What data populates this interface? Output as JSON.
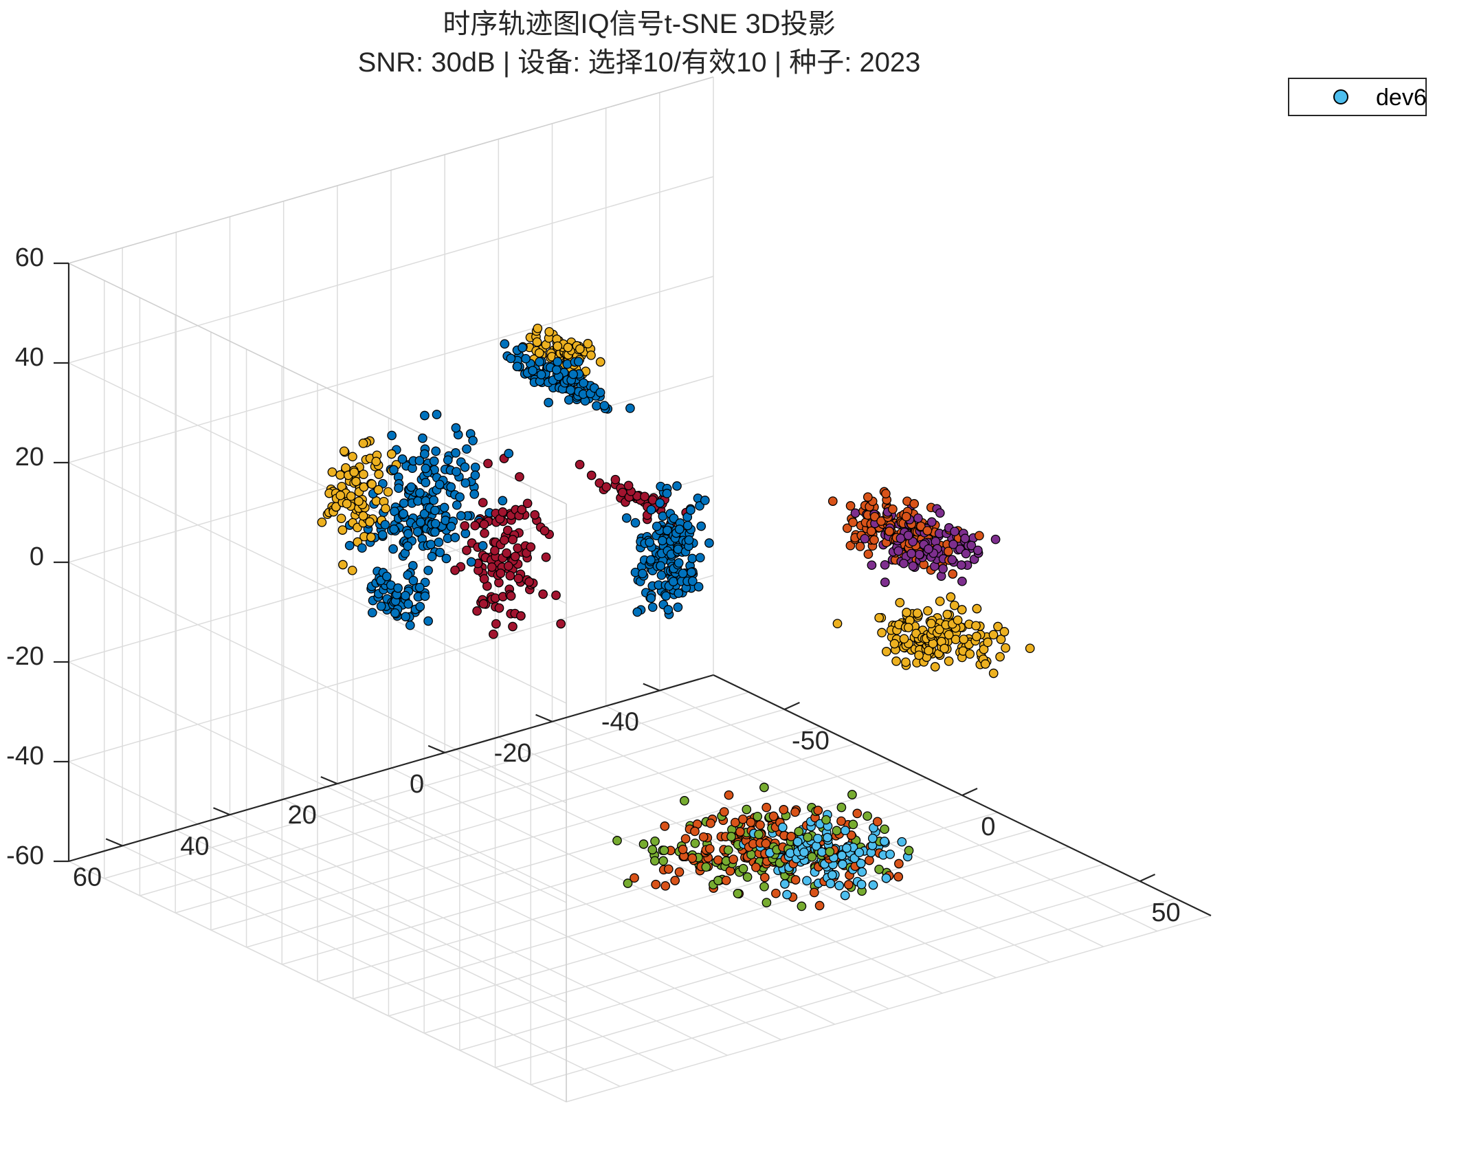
{
  "title": {
    "line1": "时序轨迹图IQ信号t-SNE 3D投影",
    "line2": "SNR: 30dB | 设备: 选择10/有效10 | 种子: 2023"
  },
  "legend": {
    "placement": "outside-top-right",
    "entries": [
      {
        "label": "dev6",
        "color": "#4DBEEE"
      }
    ]
  },
  "chart_data": {
    "type": "scatter",
    "projection": "3d",
    "grid": true,
    "box": "back-planes",
    "axes": {
      "x": {
        "ticks": [
          -50,
          0,
          50
        ],
        "range": [
          -70,
          70
        ]
      },
      "y": {
        "ticks": [
          -40,
          -20,
          0,
          20,
          40,
          60
        ],
        "range": [
          -50,
          70
        ]
      },
      "z": {
        "ticks": [
          -60,
          -40,
          -20,
          0,
          20,
          40,
          60
        ],
        "range": [
          -60,
          60
        ]
      }
    },
    "series": [
      {
        "color": "#0072BD",
        "clusters": [
          {
            "center": [
              -45,
              20,
              5
            ],
            "spread": [
              4,
              8,
              9
            ],
            "count": 180
          },
          {
            "center": [
              -30,
              5,
              30
            ],
            "spread": [
              10,
              3,
              2
            ],
            "count": 100
          },
          {
            "center": [
              -15,
              -5,
              -3
            ],
            "spread": [
              3,
              4,
              8
            ],
            "count": 160
          },
          {
            "center": [
              -50,
              22,
              -15
            ],
            "spread": [
              4,
              3,
              4
            ],
            "count": 60
          }
        ]
      },
      {
        "color": "#EDB120",
        "clusters": [
          {
            "center": [
              -50,
              30,
              8
            ],
            "spread": [
              3,
              4,
              8
            ],
            "count": 90
          },
          {
            "center": [
              -22,
              10,
              40
            ],
            "spread": [
              6,
              2,
              2
            ],
            "count": 70
          },
          {
            "center": [
              30,
              -25,
              -10
            ],
            "spread": [
              8,
              6,
              3
            ],
            "count": 160
          }
        ]
      },
      {
        "color": "#A2142F",
        "clusters": [
          {
            "center": [
              -38,
              10,
              -5
            ],
            "spread": [
              4,
              5,
              10
            ],
            "count": 120
          },
          {
            "center": [
              -8,
              5,
              14
            ],
            "spread": [
              8,
              1.5,
              1.5
            ],
            "count": 40
          }
        ]
      },
      {
        "color": "#D95319",
        "clusters": [
          {
            "center": [
              28,
              -20,
              12
            ],
            "spread": [
              9,
              5,
              3
            ],
            "count": 130
          },
          {
            "center": [
              8,
              -8,
              -55
            ],
            "spread": [
              14,
              12,
              2
            ],
            "count": 160
          }
        ]
      },
      {
        "color": "#7E2F8E",
        "clusters": [
          {
            "center": [
              32,
              -22,
              10
            ],
            "spread": [
              9,
              5,
              4
            ],
            "count": 110
          }
        ]
      },
      {
        "color": "#77AC30",
        "clusters": [
          {
            "center": [
              8,
              -8,
              -55
            ],
            "spread": [
              14,
              12,
              2
            ],
            "count": 120
          }
        ]
      },
      {
        "name": "dev6",
        "color": "#4DBEEE",
        "clusters": [
          {
            "center": [
              15,
              -15,
              -56
            ],
            "spread": [
              10,
              8,
              2
            ],
            "count": 110
          }
        ]
      }
    ]
  }
}
